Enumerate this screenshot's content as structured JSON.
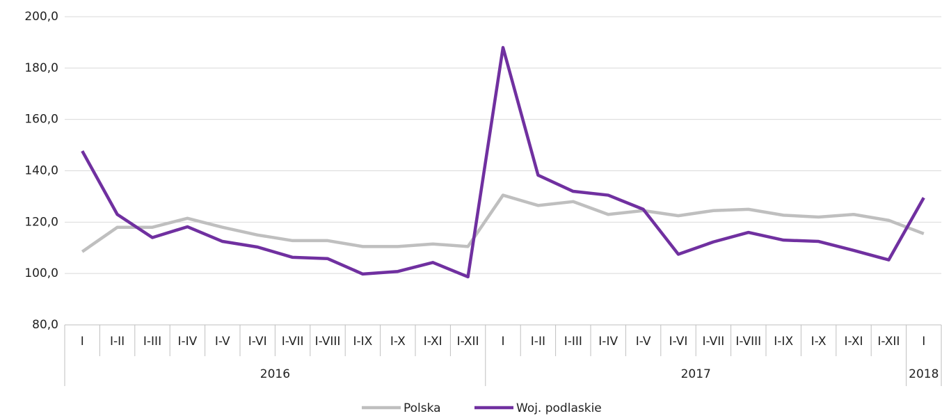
{
  "chart_data": {
    "type": "line",
    "categories": [
      "I",
      "I-II",
      "I-III",
      "I-IV",
      "I-V",
      "I-VI",
      "I-VII",
      "I-VIII",
      "I-IX",
      "I-X",
      "I-XI",
      "I-XII",
      "I",
      "I-II",
      "I-III",
      "I-IV",
      "I-V",
      "I-VI",
      "I-VII",
      "I-VIII",
      "I-IX",
      "I-X",
      "I-XI",
      "I-XII",
      "I"
    ],
    "years": [
      "2016",
      "2017",
      "2018"
    ],
    "series": [
      {
        "name": "Polska",
        "color": "#bfbfbf",
        "values": [
          108.5,
          118,
          118,
          121.5,
          118,
          115,
          112.8,
          112.8,
          110.5,
          110.5,
          111.5,
          110.5,
          130.5,
          126.5,
          128,
          123,
          124.5,
          122.5,
          124.5,
          125,
          122.7,
          122,
          123,
          120.7,
          115.5
        ]
      },
      {
        "name": "Woj. podlaskie",
        "color": "#7030a0",
        "values": [
          147.7,
          123,
          114,
          118.2,
          112.5,
          110.3,
          106.3,
          105.8,
          99.8,
          100.8,
          104.3,
          98.7,
          188,
          138.3,
          132,
          130.5,
          125,
          107.5,
          112.3,
          116,
          113,
          112.5,
          109,
          105.3,
          129.5
        ]
      }
    ],
    "ylim": [
      80,
      200
    ],
    "yticks": [
      {
        "value": 80,
        "label": "80,0"
      },
      {
        "value": 100,
        "label": "100,0"
      },
      {
        "value": 120,
        "label": "120,0"
      },
      {
        "value": 140,
        "label": "140,0"
      },
      {
        "value": 160,
        "label": "160,0"
      },
      {
        "value": 180,
        "label": "180,0"
      },
      {
        "value": 200,
        "label": "200,0"
      }
    ],
    "grid": true,
    "legend": "bottom"
  }
}
